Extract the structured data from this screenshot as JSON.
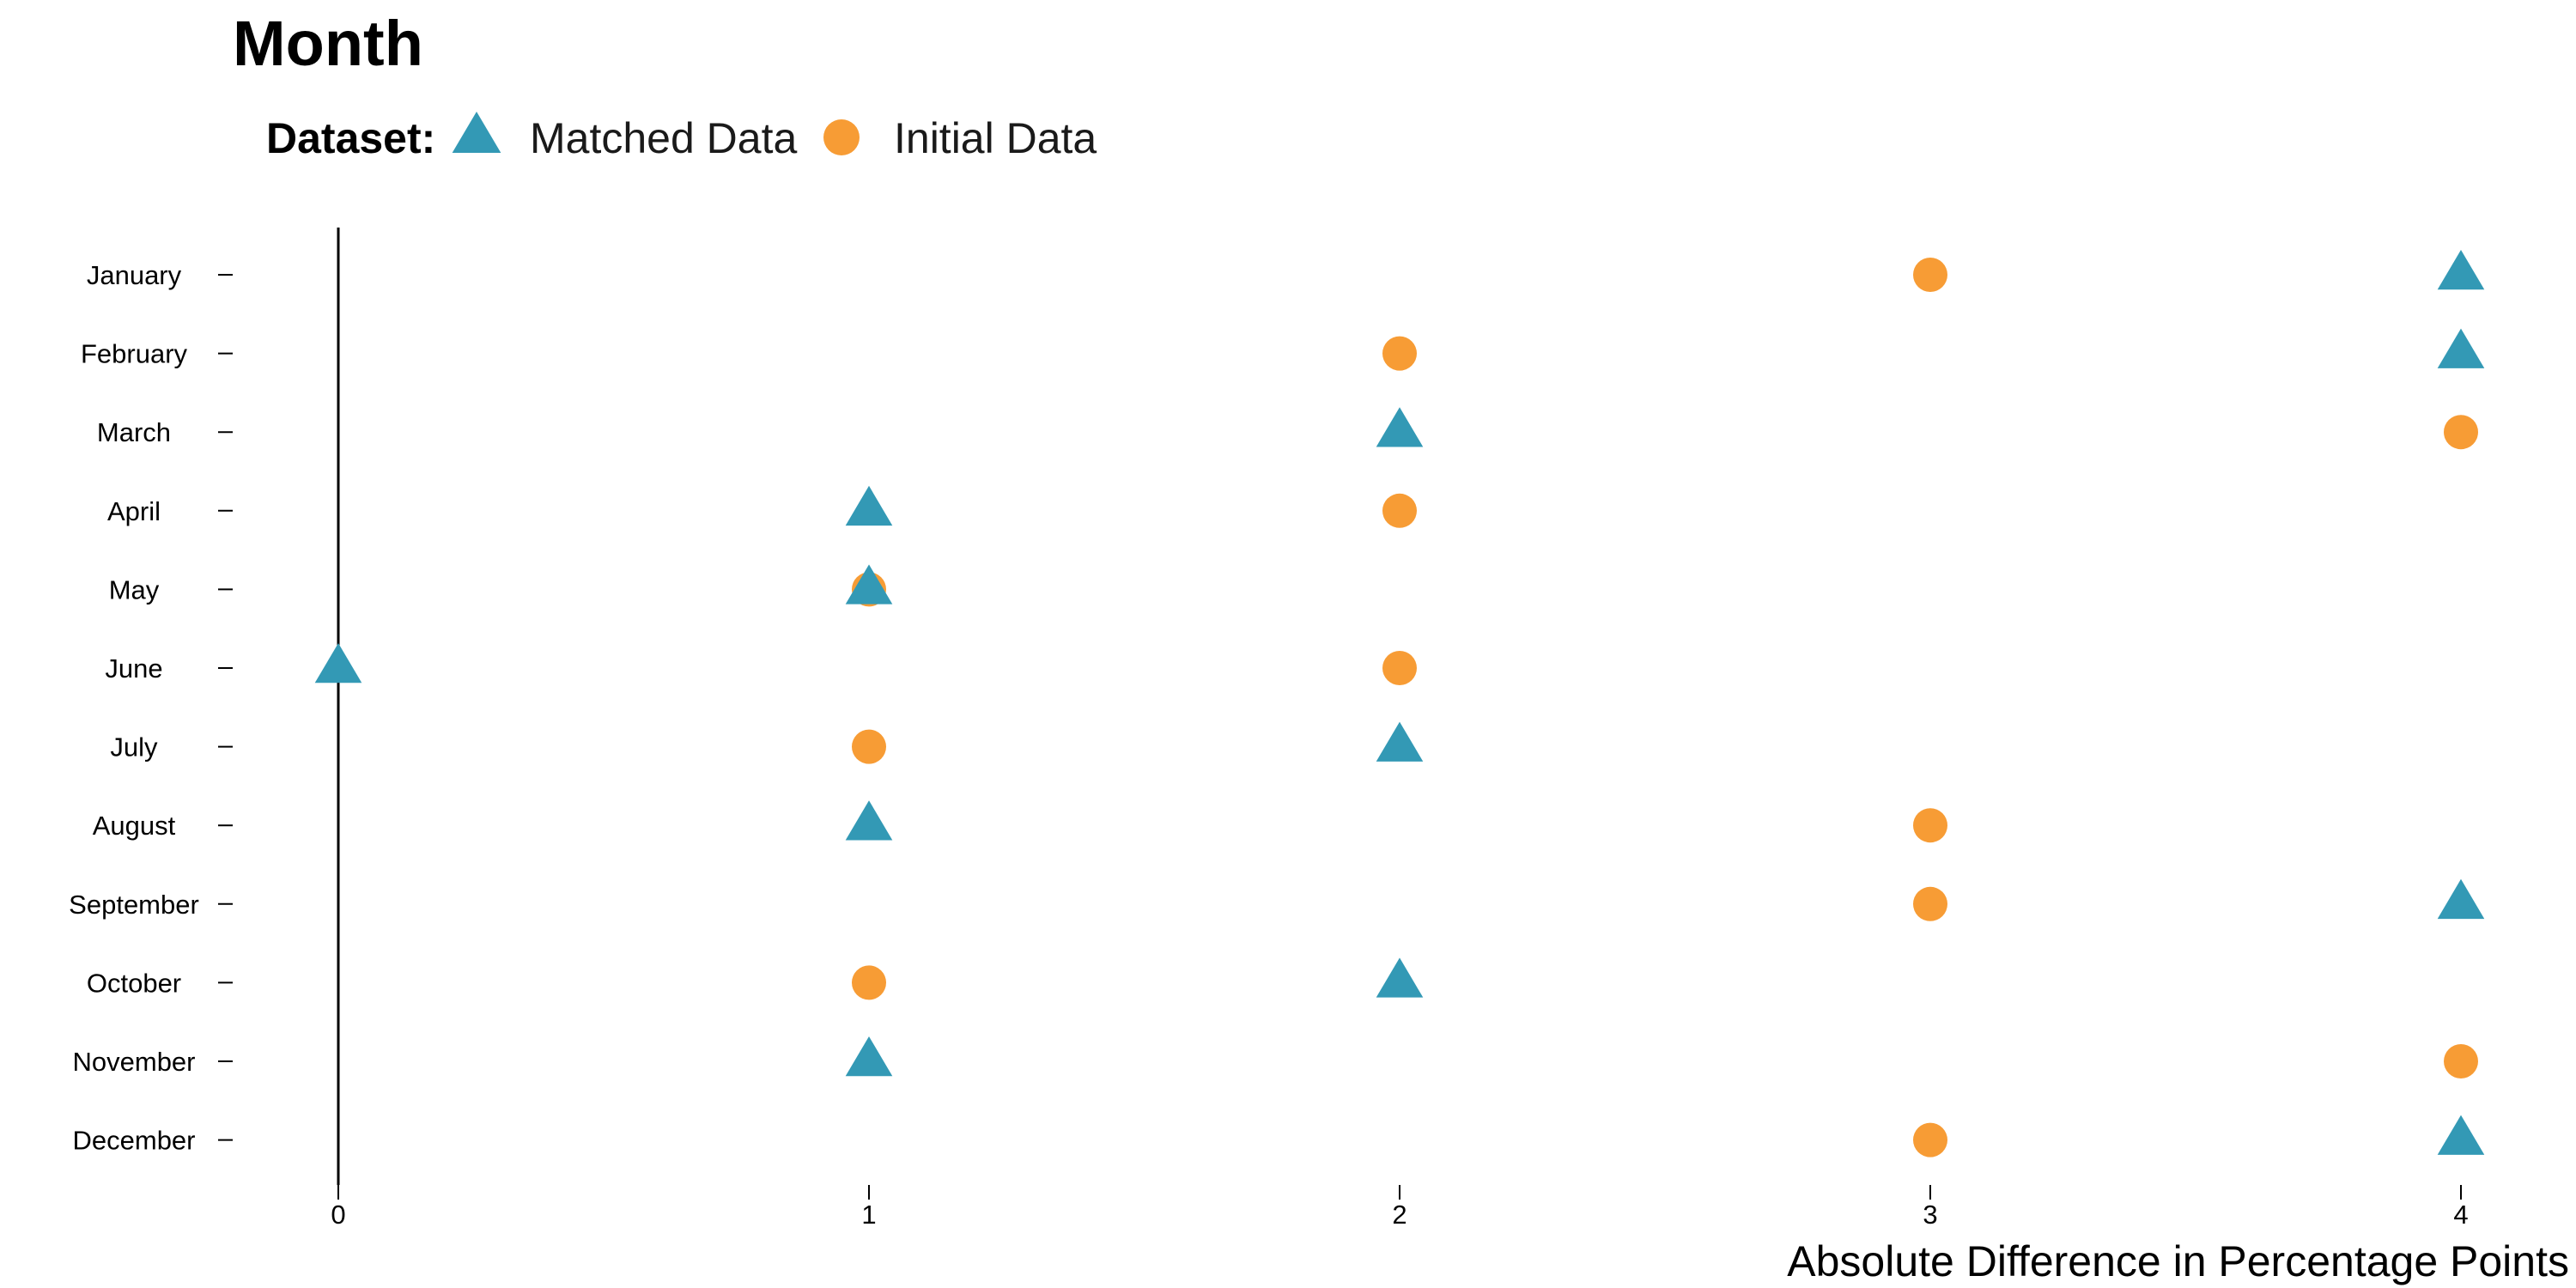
{
  "chart_data": {
    "type": "scatter",
    "title": "Month",
    "xlabel": "Absolute Difference in Percentage Points",
    "ylabel": "",
    "legend_title": "Dataset:",
    "legend_position": "top-left",
    "grid": false,
    "xlim": [
      -0.2,
      4.2
    ],
    "x_ticks": [
      0,
      1,
      2,
      3,
      4
    ],
    "categories": [
      "January",
      "February",
      "March",
      "April",
      "May",
      "June",
      "July",
      "August",
      "September",
      "October",
      "November",
      "December"
    ],
    "series": [
      {
        "name": "Matched Data",
        "marker": "triangle",
        "color": "#3399b5",
        "values": [
          4,
          4,
          2,
          1,
          1,
          0,
          2,
          1,
          4,
          2,
          1,
          4
        ]
      },
      {
        "name": "Initial Data",
        "marker": "circle",
        "color": "#f79c35",
        "values": [
          3,
          2,
          4,
          2,
          1,
          2,
          1,
          3,
          3,
          1,
          4,
          3
        ]
      }
    ]
  }
}
